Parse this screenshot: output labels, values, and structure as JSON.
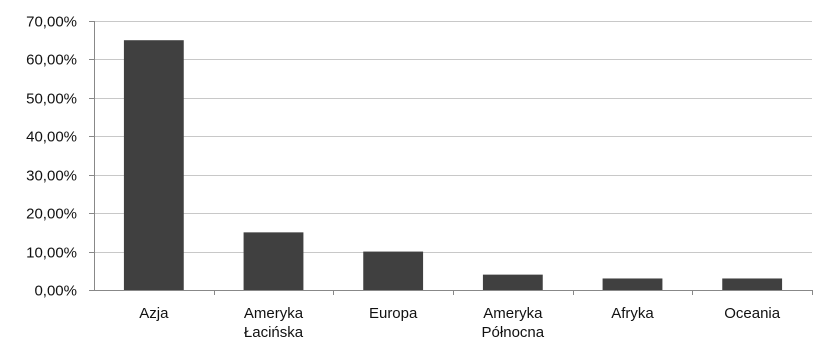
{
  "chart_data": {
    "type": "bar",
    "title": "",
    "xlabel": "",
    "ylabel": "",
    "categories": [
      [
        "Azja"
      ],
      [
        "Ameryka",
        "Łacińska"
      ],
      [
        "Europa"
      ],
      [
        "Ameryka",
        "Północna"
      ],
      [
        "Afryka"
      ],
      [
        "Oceania"
      ]
    ],
    "values": [
      65.0,
      15.0,
      10.0,
      4.0,
      3.0,
      3.0
    ],
    "ylim": [
      0,
      70
    ],
    "yticks": [
      0,
      10,
      20,
      30,
      40,
      50,
      60,
      70
    ],
    "ytick_labels": [
      "0,00%",
      "10,00%",
      "20,00%",
      "30,00%",
      "40,00%",
      "50,00%",
      "60,00%",
      "70,00%"
    ],
    "grid": true,
    "legend": "none",
    "colors": {
      "bar": "#404040",
      "grid": "#c8c8c8",
      "axis": "#888888"
    }
  }
}
